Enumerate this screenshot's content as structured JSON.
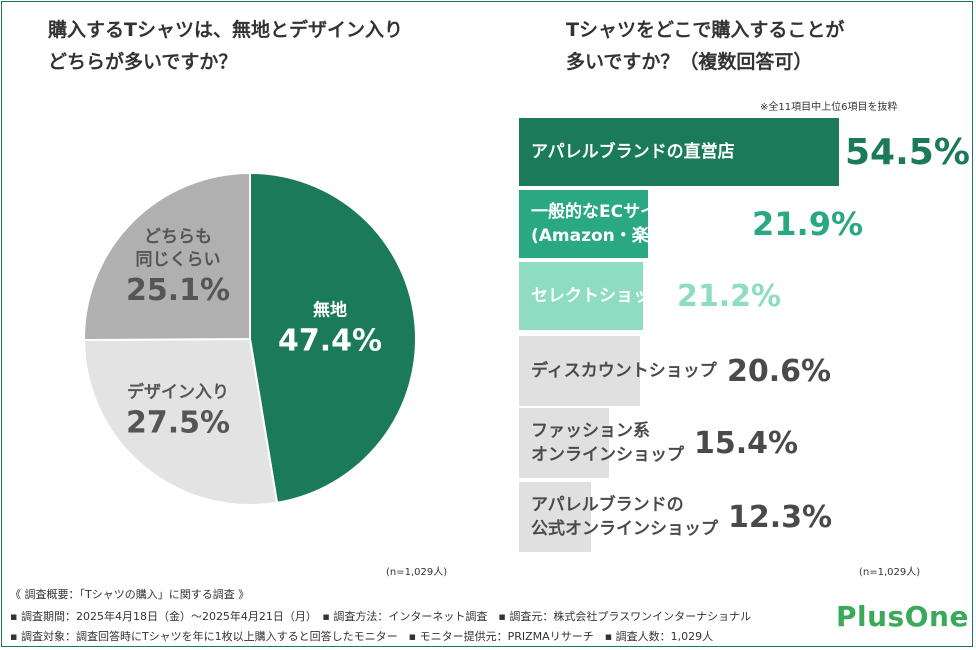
{
  "left": {
    "title": "購入するTシャツは、無地とデザイン入り\nどちらが多いですか？",
    "note": "(n=1,029人)"
  },
  "right": {
    "title": "Tシャツをどこで購入することが\n多いですか？（複数回答可）",
    "subnote": "※全11項目中上位6項目を抜粋",
    "note": "(n=1,029人)"
  },
  "chart_data": [
    {
      "type": "pie",
      "slices": [
        {
          "label": "無地",
          "value": 47.4,
          "display": "47.4%",
          "color": "#1a7a5a",
          "text_color": "#ffffff"
        },
        {
          "label": "デザイン入り",
          "value": 27.5,
          "display": "27.5%",
          "color": "#e3e3e3",
          "text_color": "#555555"
        },
        {
          "label": "どちらも\n同じくらい",
          "value": 25.1,
          "display": "25.1%",
          "color": "#b0b0b0",
          "text_color": "#555555"
        }
      ],
      "start": "12 o'clock, clockwise"
    },
    {
      "type": "bar",
      "orientation": "horizontal",
      "categories": [
        "アパレルブランドの直営店",
        "一般的なECサイト\n(Amazon・楽天市場など)",
        "セレクトショップ",
        "ディスカウントショップ",
        "ファッション系\nオンラインショップ",
        "アパレルブランドの\n公式オンラインショップ"
      ],
      "values": [
        54.5,
        21.9,
        21.2,
        20.6,
        15.4,
        12.3
      ],
      "display": [
        "54.5%",
        "21.9%",
        "21.2%",
        "20.6%",
        "15.4%",
        "12.3%"
      ],
      "bar_colors": [
        "#1a7a5a",
        "#2aa882",
        "#8edcc2",
        "#e0e0e0",
        "#e0e0e0",
        "#e0e0e0"
      ],
      "label_colors": [
        "#ffffff",
        "#ffffff",
        "#ffffff",
        "#4a4a4a",
        "#4a4a4a",
        "#4a4a4a"
      ],
      "value_colors": [
        "#1a7a5a",
        "#2aa882",
        "#8edcc2",
        "#4a4a4a",
        "#4a4a4a",
        "#4a4a4a"
      ],
      "xlim": [
        0,
        54.5
      ]
    }
  ],
  "footer": {
    "line1": "《 調査概要：「Tシャツの購入」に関する調査 》",
    "line2": "▪ 調査期間：2025年4月18日（金）〜2025年4月21日（月）　▪ 調査方法：インターネット調査　▪ 調査元：株式会社プラスワンインターナショナル",
    "line3": "▪ 調査対象：調査回答時にTシャツを年に1枚以上購入すると回答したモニター　▪ モニター提供元：PRIZMAリサーチ　▪ 調査人数：1,029人"
  },
  "logo": "PlusOne"
}
